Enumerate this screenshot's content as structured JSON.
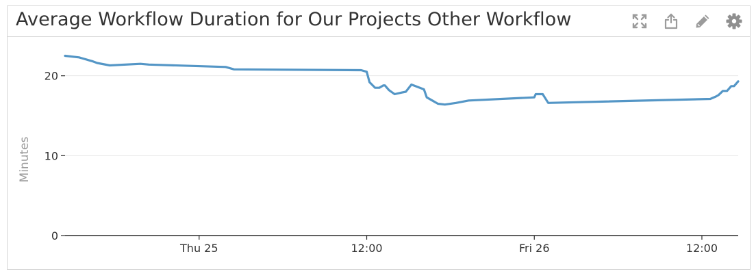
{
  "widget": {
    "title": "Average Workflow Duration for Our Projects Other Workflow",
    "tools": [
      {
        "name": "expand-icon"
      },
      {
        "name": "share-icon"
      },
      {
        "name": "edit-icon"
      },
      {
        "name": "settings-icon"
      }
    ]
  },
  "chart_data": {
    "type": "line",
    "title": "Average Workflow Duration for Our Projects Other Workflow",
    "xlabel": "",
    "ylabel": "Minutes",
    "x_ticks": [
      "Thu 25",
      "12:00",
      "Fri 26",
      "12:00"
    ],
    "x_tick_hours": [
      24,
      36,
      48,
      60
    ],
    "xlim_hours": [
      14.4,
      62.6
    ],
    "ylim": [
      0,
      24
    ],
    "y_ticks": [
      0,
      10,
      20
    ],
    "grid": true,
    "legend": "none",
    "line_color": "#5496c6",
    "series": [
      {
        "x_hours": [
          14.4,
          15.4,
          15.6,
          16.4,
          16.7,
          17.6,
          19.8,
          20.4,
          25.9,
          26.5,
          35.6,
          36.0,
          36.2,
          36.6,
          36.9,
          37.2,
          37.3,
          37.6,
          38.0,
          38.5,
          38.8,
          39.2,
          40.1,
          40.3,
          41.1,
          41.6,
          42.4,
          43.3,
          48.0,
          48.1,
          48.6,
          49.0,
          60.6,
          61.0,
          61.2,
          61.5,
          61.8,
          62.1,
          62.3,
          62.6
        ],
        "values": [
          22.5,
          22.3,
          22.2,
          21.8,
          21.6,
          21.3,
          21.5,
          21.4,
          21.1,
          20.8,
          20.7,
          20.5,
          19.2,
          18.5,
          18.5,
          18.8,
          18.8,
          18.2,
          17.7,
          17.9,
          18.0,
          18.9,
          18.3,
          17.3,
          16.5,
          16.4,
          16.6,
          16.9,
          17.3,
          17.7,
          17.7,
          16.6,
          17.1,
          17.4,
          17.6,
          18.1,
          18.1,
          18.7,
          18.7,
          19.3
        ]
      }
    ]
  }
}
